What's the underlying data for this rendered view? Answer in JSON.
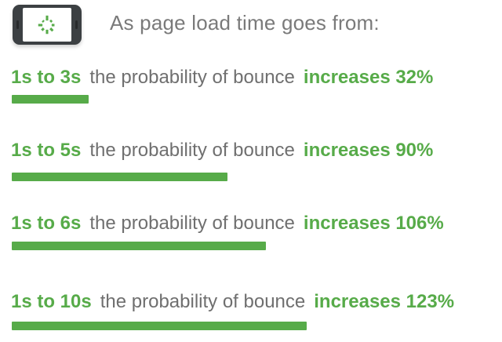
{
  "header": {
    "icon": "phone-loading-spinner-icon",
    "title": "As page load time goes from:"
  },
  "colors": {
    "green": "#57ab49",
    "text_gray": "#6f6f6f",
    "header_gray": "#7a7a7a",
    "phone_body": "#3c4043",
    "background": "#ffffff"
  },
  "chart_data": {
    "type": "bar",
    "orientation": "horizontal",
    "title": "As page load time goes from:",
    "categories": [
      "1s to 3s",
      "1s to 5s",
      "1s to 6s",
      "1s to 10s"
    ],
    "values": [
      32,
      90,
      106,
      123
    ],
    "unit": "%",
    "xlim": [
      0,
      130
    ],
    "grid": false,
    "legend": false,
    "rows": [
      {
        "range": "1s to 3s",
        "middle": "the probability of bounce",
        "emphasis": "increases 32%",
        "percent": 32
      },
      {
        "range": "1s to 5s",
        "middle": "the probability of bounce",
        "emphasis": "increases 90%",
        "percent": 90
      },
      {
        "range": "1s to 6s",
        "middle": "the probability of bounce",
        "emphasis": "increases 106%",
        "percent": 106
      },
      {
        "range": "1s to 10s",
        "middle": "the probability of bounce",
        "emphasis": "increases 123%",
        "percent": 123
      }
    ]
  }
}
